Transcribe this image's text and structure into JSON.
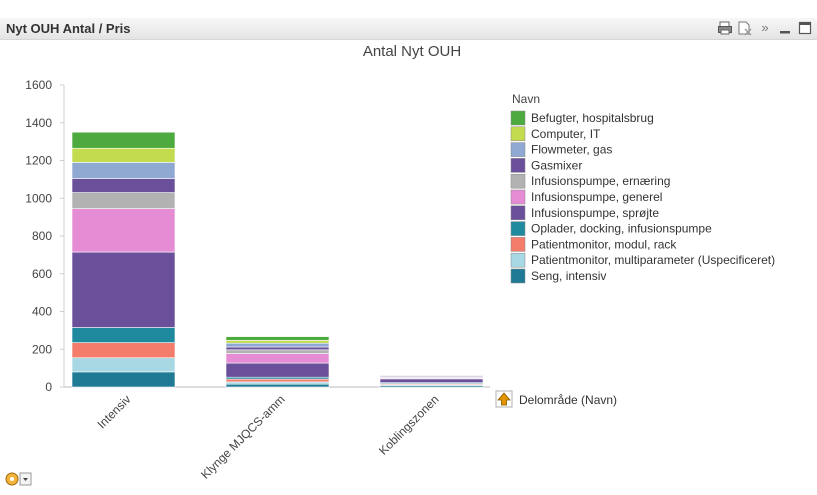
{
  "caption": {
    "title": "Nyt OUH Antal / Pris",
    "icons": [
      "print-icon",
      "clear-selection-icon",
      "expand-icon",
      "minimize-icon",
      "maximize-icon"
    ],
    "expand_glyph": "»"
  },
  "colors": {
    "caption_bg": "#e6e6e6",
    "axis": "#bbbbbb",
    "text": "#444444"
  },
  "chart_data": {
    "type": "bar",
    "stacked": true,
    "title": "Antal Nyt OUH",
    "xlabel": "",
    "ylabel": "",
    "ylim": [
      0,
      1600
    ],
    "yticks": [
      0,
      200,
      400,
      600,
      800,
      1000,
      1200,
      1400,
      1600
    ],
    "grid": false,
    "legend_title": "Navn",
    "legend_position": "right",
    "categories": [
      "Intensiv",
      "Klynge MJQCS-amm",
      "Koblingszonen"
    ],
    "series": [
      {
        "name": "Seng, intensiv",
        "color": "#1f7b95",
        "values": [
          80,
          15,
          8
        ]
      },
      {
        "name": "Patientmonitor, multiparameter (Uspecificeret)",
        "color": "#a7d8e4",
        "values": [
          75,
          12,
          5
        ]
      },
      {
        "name": "Patientmonitor, modul, rack",
        "color": "#f47c6b",
        "values": [
          80,
          15,
          5
        ]
      },
      {
        "name": "Oplader, docking, infusionspumpe",
        "color": "#1f8a9e",
        "values": [
          80,
          10,
          5
        ]
      },
      {
        "name": "Infusionspumpe, sprøjte",
        "color": "#6a4f9a",
        "values": [
          400,
          75,
          20
        ]
      },
      {
        "name": "Infusionspumpe, generel",
        "color": "#e58cd4",
        "values": [
          230,
          50,
          5
        ]
      },
      {
        "name": "Infusionspumpe, ernæring",
        "color": "#b2b2b2",
        "values": [
          85,
          20,
          5
        ]
      },
      {
        "name": "Gasmixer",
        "color": "#6a4f9a",
        "values": [
          75,
          15,
          5
        ]
      },
      {
        "name": "Flowmeter, gas",
        "color": "#90a9d2",
        "values": [
          85,
          20,
          4
        ]
      },
      {
        "name": "Computer, IT",
        "color": "#c3dc4f",
        "values": [
          75,
          15,
          3
        ]
      },
      {
        "name": "Befugter, hospitalsbrug",
        "color": "#4daa3e",
        "values": [
          85,
          20,
          3
        ]
      }
    ],
    "dimension_button": "Delområde (Navn)"
  }
}
